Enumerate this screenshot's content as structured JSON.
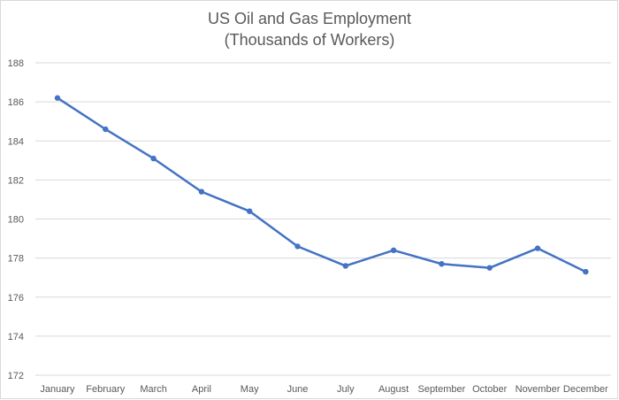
{
  "chart_data": {
    "type": "line",
    "title": "US Oil and Gas Employment",
    "subtitle": "(Thousands of Workers)",
    "xlabel": "",
    "ylabel": "",
    "categories": [
      "January",
      "February",
      "March",
      "April",
      "May",
      "June",
      "July",
      "August",
      "September",
      "October",
      "November",
      "December"
    ],
    "series": [
      {
        "values": [
          186.2,
          184.6,
          183.1,
          181.4,
          180.4,
          178.6,
          177.6,
          178.4,
          177.7,
          177.5,
          178.5,
          177.3
        ],
        "color": "#4472c4"
      }
    ],
    "ylim": [
      172,
      188
    ],
    "yticks": [
      "172",
      "174",
      "176",
      "178",
      "180",
      "182",
      "184",
      "186",
      "188"
    ],
    "grid": true,
    "legend": "none",
    "colors": {
      "gridline": "#d9d9d9",
      "text": "#595959",
      "line": "#4472c4"
    }
  }
}
